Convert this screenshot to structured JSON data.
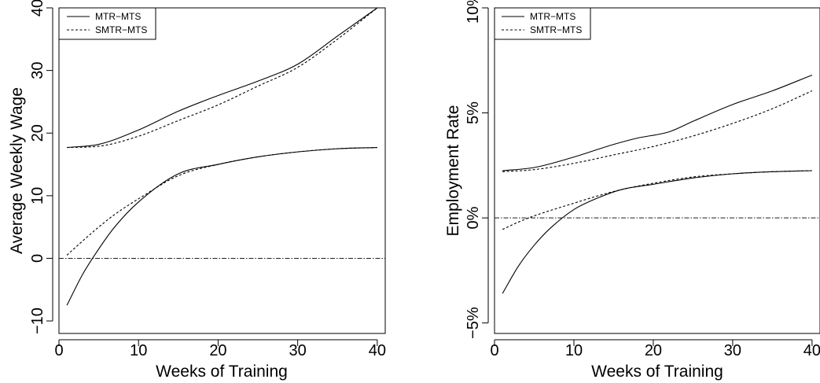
{
  "chart_data": [
    {
      "type": "line",
      "xlabel": "Weeks of Training",
      "ylabel": "Average Weekly Wage",
      "xlim": [
        0,
        41
      ],
      "ylim": [
        -12,
        40
      ],
      "x_ticks": [
        0,
        10,
        20,
        30,
        40
      ],
      "y_ticks": [
        -10,
        0,
        10,
        20,
        30,
        40
      ],
      "y_tick_labels": [
        "−10",
        "0",
        "10",
        "20",
        "30",
        "40"
      ],
      "x_tick_labels": [
        "0",
        "10",
        "20",
        "30",
        "40"
      ],
      "reference_line": 0,
      "grid": false,
      "legend_position": "top-left",
      "legend": [
        {
          "name": "MTR−MTS",
          "dash": "solid"
        },
        {
          "name": "SMTR−MTS",
          "dash": "dashed"
        }
      ],
      "series": [
        {
          "name": "MTR−MTS",
          "dash": "solid",
          "bound": "upper",
          "x": [
            1,
            5,
            10,
            15,
            20,
            25,
            30,
            35,
            40
          ],
          "values": [
            17.7,
            18.2,
            20.5,
            23.5,
            26.0,
            28.3,
            31.0,
            35.5,
            40.0
          ]
        },
        {
          "name": "SMTR−MTS",
          "dash": "dashed",
          "bound": "upper",
          "x": [
            1,
            5,
            10,
            15,
            20,
            25,
            30,
            35,
            40
          ],
          "values": [
            17.7,
            17.9,
            19.5,
            22.0,
            24.5,
            27.5,
            30.5,
            35.0,
            40.0
          ]
        },
        {
          "name": "MTR−MTS",
          "dash": "solid",
          "bound": "lower",
          "x": [
            1,
            3,
            5,
            7,
            10,
            15,
            20,
            25,
            30,
            35,
            40
          ],
          "values": [
            -7.5,
            -2.5,
            1.5,
            5.0,
            9.0,
            13.5,
            15.0,
            16.2,
            17.0,
            17.5,
            17.7
          ]
        },
        {
          "name": "SMTR−MTS",
          "dash": "dashed",
          "bound": "lower",
          "x": [
            1,
            3,
            5,
            7,
            10,
            15,
            20,
            25,
            30,
            35,
            40
          ],
          "values": [
            0.5,
            2.8,
            5.0,
            7.0,
            9.5,
            13.2,
            15.0,
            16.2,
            17.0,
            17.5,
            17.7
          ]
        }
      ]
    },
    {
      "type": "line",
      "xlabel": "Weeks of Training",
      "ylabel": "Employment Rate",
      "xlim": [
        0,
        41
      ],
      "ylim": [
        -5.5,
        10
      ],
      "x_ticks": [
        0,
        10,
        20,
        30,
        40
      ],
      "y_ticks": [
        -5,
        0,
        5,
        10
      ],
      "y_tick_labels": [
        "−5%",
        "0%",
        "5%",
        "10%"
      ],
      "x_tick_labels": [
        "0",
        "10",
        "20",
        "30",
        "40"
      ],
      "reference_line": 0,
      "grid": false,
      "legend_position": "top-left",
      "legend": [
        {
          "name": "MTR−MTS",
          "dash": "solid"
        },
        {
          "name": "SMTR−MTS",
          "dash": "dashed"
        }
      ],
      "series": [
        {
          "name": "MTR−MTS",
          "dash": "solid",
          "bound": "upper",
          "x": [
            1,
            5,
            10,
            15,
            18,
            22,
            25,
            30,
            35,
            40
          ],
          "values": [
            2.25,
            2.4,
            2.9,
            3.5,
            3.8,
            4.1,
            4.6,
            5.4,
            6.05,
            6.8
          ]
        },
        {
          "name": "SMTR−MTS",
          "dash": "dashed",
          "bound": "upper",
          "x": [
            1,
            5,
            10,
            15,
            20,
            25,
            30,
            35,
            40
          ],
          "values": [
            2.2,
            2.3,
            2.6,
            3.0,
            3.4,
            3.9,
            4.5,
            5.2,
            6.05
          ]
        },
        {
          "name": "MTR−MTS",
          "dash": "solid",
          "bound": "lower",
          "x": [
            1,
            3,
            5,
            7,
            10,
            13,
            16,
            20,
            25,
            30,
            35,
            40
          ],
          "values": [
            -3.6,
            -2.3,
            -1.3,
            -0.5,
            0.4,
            0.95,
            1.35,
            1.6,
            1.9,
            2.1,
            2.2,
            2.25
          ]
        },
        {
          "name": "SMTR−MTS",
          "dash": "dashed",
          "bound": "lower",
          "x": [
            1,
            3,
            5,
            7,
            10,
            13,
            16,
            20,
            25,
            30,
            35,
            40
          ],
          "values": [
            -0.55,
            -0.2,
            0.1,
            0.35,
            0.7,
            1.05,
            1.35,
            1.65,
            1.95,
            2.1,
            2.2,
            2.25
          ]
        }
      ]
    }
  ]
}
